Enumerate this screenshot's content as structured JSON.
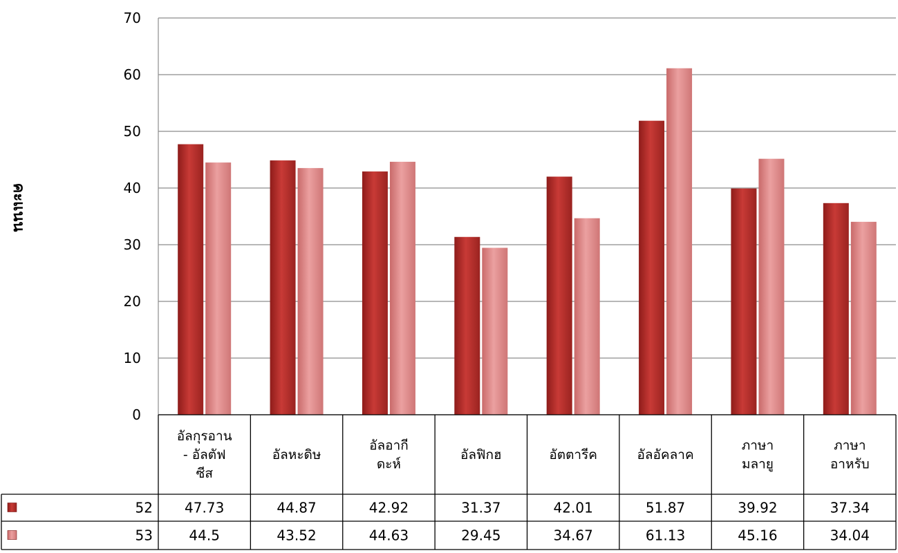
{
  "chart_data": {
    "type": "bar",
    "title": "",
    "xlabel": "",
    "ylabel": "คะแนน",
    "ylim": [
      0,
      70
    ],
    "yticks": [
      0,
      10,
      20,
      30,
      40,
      50,
      60,
      70
    ],
    "grid": true,
    "legend": "data-table",
    "categories": [
      [
        "อัลกุรอาน",
        "- อัลตัฟ",
        "ซีส"
      ],
      [
        "อัลหะดิษ"
      ],
      [
        "อัลอากี",
        "ดะห์"
      ],
      [
        "อัลฟิกฮ"
      ],
      [
        "อัตตารีค"
      ],
      [
        "อัลอัคลาค"
      ],
      [
        "ภาษา",
        "มลายู"
      ],
      [
        "ภาษา",
        "อาหรับ"
      ]
    ],
    "series": [
      {
        "name": "52",
        "color": "#c0312f",
        "values": [
          47.73,
          44.87,
          42.92,
          31.37,
          42.01,
          51.87,
          39.92,
          37.34
        ],
        "labels": [
          "47.73",
          "44.87",
          "42.92",
          "31.37",
          "42.01",
          "51.87",
          "39.92",
          "37.34"
        ]
      },
      {
        "name": "53",
        "color": "#e38b8b",
        "values": [
          44.5,
          43.52,
          44.63,
          29.45,
          34.67,
          61.13,
          45.16,
          34.04
        ],
        "labels": [
          "44.5",
          "43.52",
          "44.63",
          "29.45",
          "34.67",
          "61.13",
          "45.16",
          "34.04"
        ]
      }
    ]
  }
}
